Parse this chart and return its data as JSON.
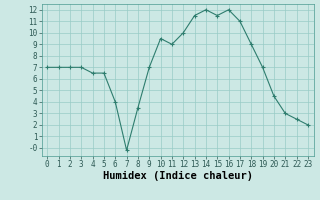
{
  "x": [
    0,
    1,
    2,
    3,
    4,
    5,
    6,
    7,
    8,
    9,
    10,
    11,
    12,
    13,
    14,
    15,
    16,
    17,
    18,
    19,
    20,
    21,
    22,
    23
  ],
  "y": [
    7.0,
    7.0,
    7.0,
    7.0,
    6.5,
    6.5,
    4.0,
    -0.2,
    3.5,
    7.0,
    9.5,
    9.0,
    10.0,
    11.5,
    12.0,
    11.5,
    12.0,
    11.0,
    9.0,
    7.0,
    4.5,
    3.0,
    2.5,
    2.0
  ],
  "xlabel": "Humidex (Indice chaleur)",
  "line_color": "#2e7d6e",
  "marker": "+",
  "marker_size": 3,
  "marker_color": "#2e7d6e",
  "bg_color": "#cce8e4",
  "grid_color": "#99ccc6",
  "ylim": [
    -0.7,
    12.5
  ],
  "xlim": [
    -0.5,
    23.5
  ],
  "yticks": [
    0,
    1,
    2,
    3,
    4,
    5,
    6,
    7,
    8,
    9,
    10,
    11,
    12
  ],
  "ytick_labels": [
    "-0",
    "1",
    "2",
    "3",
    "4",
    "5",
    "6",
    "7",
    "8",
    "9",
    "10",
    "11",
    "12"
  ],
  "xticks": [
    0,
    1,
    2,
    3,
    4,
    5,
    6,
    7,
    8,
    9,
    10,
    11,
    12,
    13,
    14,
    15,
    16,
    17,
    18,
    19,
    20,
    21,
    22,
    23
  ],
  "tick_fontsize": 5.5,
  "xlabel_fontsize": 7.5
}
